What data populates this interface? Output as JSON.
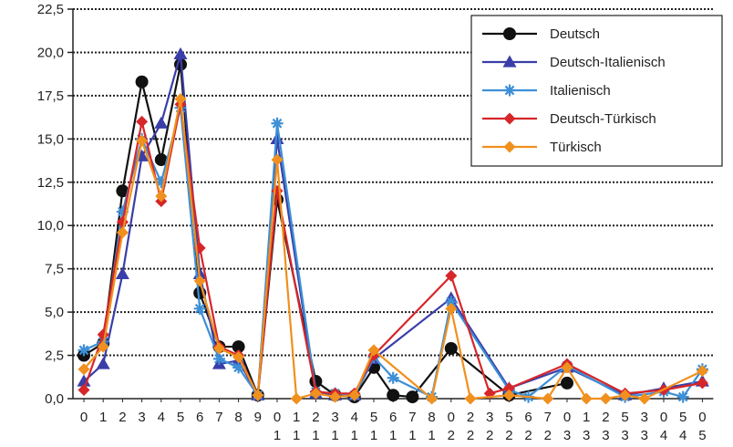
{
  "chart_data": {
    "type": "line",
    "title": "",
    "xlabel": "",
    "ylabel": "",
    "ylim": [
      0,
      22.5
    ],
    "yticks": [
      "0,0",
      "2,5",
      "5,0",
      "7,5",
      "10,0",
      "12,5",
      "15,0",
      "17,5",
      "20,0",
      "22,5"
    ],
    "grid": "horizontal-dotted",
    "legend_position": "top-right",
    "categories": [
      [
        "0"
      ],
      [
        "1"
      ],
      [
        "2"
      ],
      [
        "3"
      ],
      [
        "4"
      ],
      [
        "5"
      ],
      [
        "6"
      ],
      [
        "7"
      ],
      [
        "8"
      ],
      [
        "9"
      ],
      [
        "0",
        "1"
      ],
      [
        "1",
        "1"
      ],
      [
        "2",
        "1"
      ],
      [
        "3",
        "1"
      ],
      [
        "4",
        "1"
      ],
      [
        "5",
        "1"
      ],
      [
        "6",
        "1"
      ],
      [
        "7",
        "1"
      ],
      [
        "8",
        "1"
      ],
      [
        "0",
        "2"
      ],
      [
        "2",
        "2"
      ],
      [
        "3",
        "2"
      ],
      [
        "5",
        "2"
      ],
      [
        "6",
        "2"
      ],
      [
        "7",
        "2"
      ],
      [
        "0",
        "3"
      ],
      [
        "1",
        "3"
      ],
      [
        "2",
        "3"
      ],
      [
        "5",
        "3"
      ],
      [
        "3",
        "3"
      ],
      [
        "0",
        "4"
      ],
      [
        "5",
        "4"
      ],
      [
        "0",
        "5"
      ]
    ],
    "series": [
      {
        "name": "Deutsch",
        "color": "#111111",
        "marker": "circle",
        "points": [
          [
            0,
            2.5
          ],
          [
            1,
            3.2
          ],
          [
            2,
            12.0
          ],
          [
            3,
            18.3
          ],
          [
            4,
            13.8
          ],
          [
            5,
            19.3
          ],
          [
            6,
            6.1
          ],
          [
            7,
            3.0
          ],
          [
            8,
            3.0
          ],
          [
            9,
            0.2
          ],
          [
            10,
            11.5
          ],
          [
            12,
            1.0
          ],
          [
            13,
            0.2
          ],
          [
            14,
            0.1
          ],
          [
            15,
            1.8
          ],
          [
            16,
            0.2
          ],
          [
            17,
            0.1
          ],
          [
            19,
            2.9
          ],
          [
            22,
            0.2
          ],
          [
            25,
            0.9
          ]
        ]
      },
      {
        "name": "Deutsch-Italienisch",
        "color": "#3a3ea8",
        "marker": "triangle",
        "points": [
          [
            0,
            1.0
          ],
          [
            1,
            2.0
          ],
          [
            2,
            7.2
          ],
          [
            3,
            14.0
          ],
          [
            4,
            15.9
          ],
          [
            5,
            19.9
          ],
          [
            6,
            7.2
          ],
          [
            7,
            2.0
          ],
          [
            8,
            2.2
          ],
          [
            9,
            0.2
          ],
          [
            10,
            15.0
          ],
          [
            12,
            0.3
          ],
          [
            13,
            0.2
          ],
          [
            14,
            0.2
          ],
          [
            15,
            2.3
          ],
          [
            19,
            5.8
          ],
          [
            22,
            0.6
          ],
          [
            25,
            1.8
          ],
          [
            28,
            0.2
          ],
          [
            30,
            0.6
          ],
          [
            32,
            1.0
          ]
        ]
      },
      {
        "name": "Italienisch",
        "color": "#3d8fd6",
        "marker": "star",
        "points": [
          [
            0,
            2.8
          ],
          [
            1,
            3.3
          ],
          [
            2,
            10.8
          ],
          [
            3,
            15.0
          ],
          [
            4,
            12.5
          ],
          [
            5,
            16.8
          ],
          [
            6,
            5.2
          ],
          [
            7,
            2.3
          ],
          [
            8,
            1.8
          ],
          [
            9,
            0.2
          ],
          [
            10,
            15.9
          ],
          [
            12,
            0.4
          ],
          [
            13,
            0.3
          ],
          [
            14,
            0.2
          ],
          [
            15,
            2.4
          ],
          [
            16,
            1.2
          ],
          [
            18,
            0.1
          ],
          [
            19,
            5.6
          ],
          [
            22,
            0.5
          ],
          [
            23,
            0.1
          ],
          [
            25,
            1.9
          ],
          [
            28,
            0.1
          ],
          [
            30,
            0.4
          ],
          [
            31,
            0.1
          ],
          [
            32,
            1.7
          ]
        ]
      },
      {
        "name": "Deutsch-Türkisch",
        "color": "#d6262a",
        "marker": "diamond",
        "points": [
          [
            0,
            0.5
          ],
          [
            1,
            3.7
          ],
          [
            2,
            10.2
          ],
          [
            3,
            16.0
          ],
          [
            4,
            11.4
          ],
          [
            5,
            17.0
          ],
          [
            6,
            8.7
          ],
          [
            7,
            3.0
          ],
          [
            8,
            2.5
          ],
          [
            9,
            0.2
          ],
          [
            10,
            12.0
          ],
          [
            12,
            0.4
          ],
          [
            13,
            0.3
          ],
          [
            14,
            0.3
          ],
          [
            15,
            2.5
          ],
          [
            19,
            7.1
          ],
          [
            21,
            0.3
          ],
          [
            22,
            0.6
          ],
          [
            25,
            2.0
          ],
          [
            28,
            0.3
          ],
          [
            30,
            0.5
          ],
          [
            32,
            0.9
          ]
        ]
      },
      {
        "name": "Türkisch",
        "color": "#f0901e",
        "marker": "diamond",
        "points": [
          [
            0,
            1.7
          ],
          [
            1,
            3.0
          ],
          [
            2,
            9.6
          ],
          [
            3,
            14.9
          ],
          [
            4,
            11.7
          ],
          [
            5,
            17.3
          ],
          [
            6,
            6.8
          ],
          [
            7,
            2.9
          ],
          [
            8,
            2.4
          ],
          [
            9,
            0.2
          ],
          [
            10,
            13.8
          ],
          [
            11,
            0.0
          ],
          [
            12,
            0.3
          ],
          [
            13,
            0.1
          ],
          [
            14,
            0.2
          ],
          [
            15,
            2.8
          ],
          [
            18,
            0.0
          ],
          [
            19,
            5.2
          ],
          [
            20,
            0.0
          ],
          [
            22,
            0.2
          ],
          [
            24,
            0.0
          ],
          [
            25,
            1.8
          ],
          [
            26,
            0.0
          ],
          [
            27,
            0.0
          ],
          [
            28,
            0.2
          ],
          [
            29,
            0.0
          ],
          [
            32,
            1.6
          ]
        ]
      }
    ]
  }
}
